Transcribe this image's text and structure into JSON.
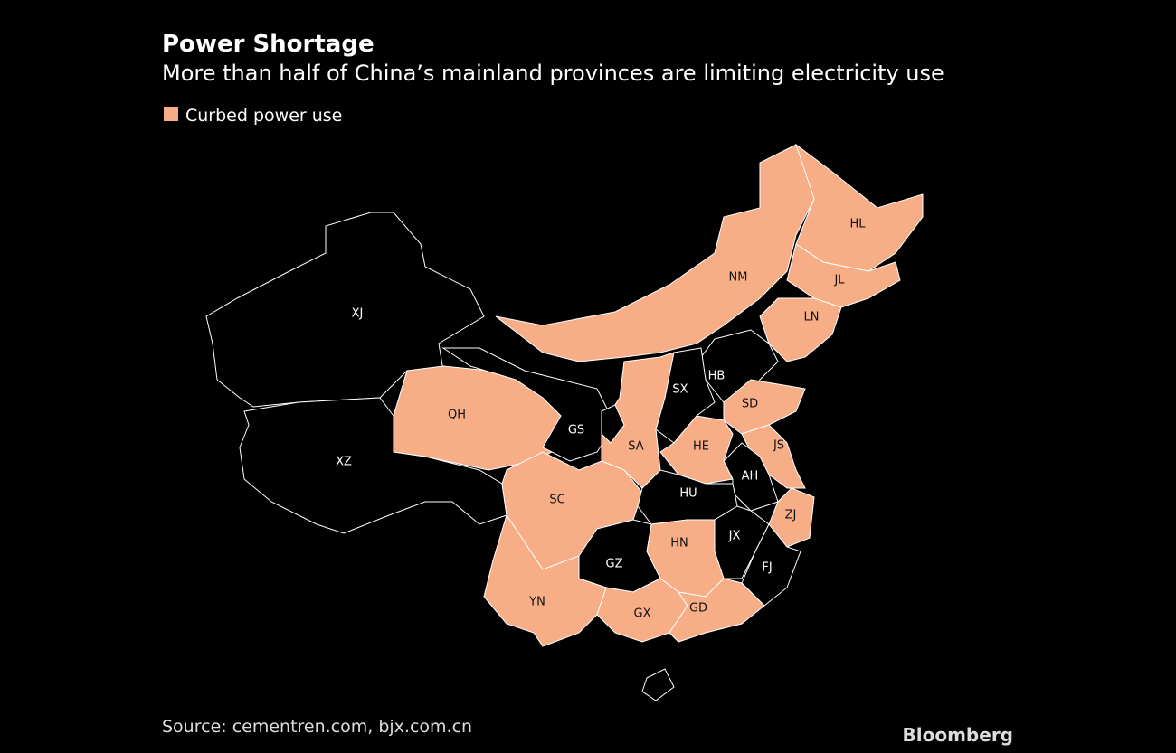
{
  "header": {
    "title": "Power Shortage",
    "subtitle": "More than half of China’s mainland provinces are limiting electricity use"
  },
  "legend": {
    "label": "Curbed power use",
    "color": "#f7ae87"
  },
  "map": {
    "other_color": "#000000",
    "border_color": "#ffffff",
    "provinces": [
      {
        "label": "XJ",
        "curbed": false
      },
      {
        "label": "XZ",
        "curbed": false
      },
      {
        "label": "QH",
        "curbed": true
      },
      {
        "label": "GS",
        "curbed": false
      },
      {
        "label": "NM",
        "curbed": true
      },
      {
        "label": "HL",
        "curbed": true
      },
      {
        "label": "JL",
        "curbed": true
      },
      {
        "label": "LN",
        "curbed": true
      },
      {
        "label": "HB",
        "curbed": false
      },
      {
        "label": "SX",
        "curbed": false
      },
      {
        "label": "SD",
        "curbed": true
      },
      {
        "label": "HE",
        "curbed": true
      },
      {
        "label": "SA",
        "curbed": true
      },
      {
        "label": "SC",
        "curbed": true
      },
      {
        "label": "JS",
        "curbed": true
      },
      {
        "label": "AH",
        "curbed": false
      },
      {
        "label": "ZJ",
        "curbed": true
      },
      {
        "label": "HU",
        "curbed": false
      },
      {
        "label": "JX",
        "curbed": false
      },
      {
        "label": "FJ",
        "curbed": false
      },
      {
        "label": "HN",
        "curbed": true
      },
      {
        "label": "GZ",
        "curbed": false
      },
      {
        "label": "YN",
        "curbed": true
      },
      {
        "label": "GX",
        "curbed": true
      },
      {
        "label": "GD",
        "curbed": true
      }
    ]
  },
  "footer": {
    "source": "Source: cementren.com, bjx.com.cn",
    "brand": "Bloomberg"
  }
}
